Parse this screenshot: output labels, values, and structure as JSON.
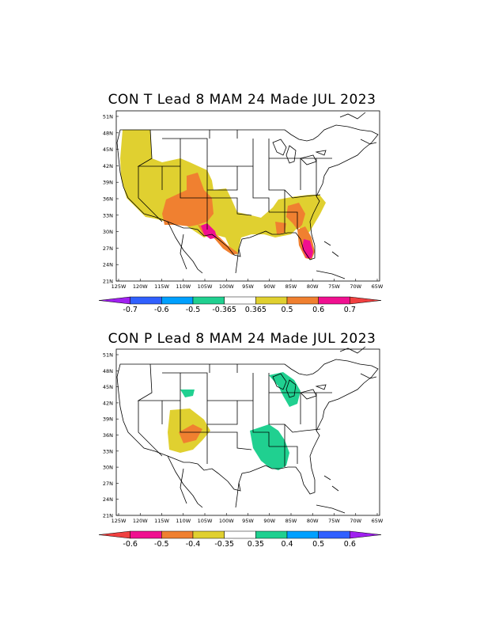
{
  "maps": [
    {
      "title": "CON T Lead 8 MAM 24 Made JUL 2023",
      "lat_labels": [
        "51N",
        "48N",
        "45N",
        "42N",
        "39N",
        "36N",
        "33N",
        "30N",
        "27N",
        "24N",
        "21N"
      ],
      "lon_labels": [
        "125W",
        "120W",
        "115W",
        "110W",
        "105W",
        "100W",
        "95W",
        "90W",
        "85W",
        "80W",
        "75W",
        "70W",
        "65W"
      ],
      "colorbar": {
        "colors": [
          "#a020f0",
          "#3060ff",
          "#00a0ff",
          "#20d090",
          "#ffffff",
          "#e0d030",
          "#f08030",
          "#f01090",
          "#f04040"
        ],
        "labels": [
          "-0.7",
          "-0.6",
          "-0.5",
          "-0.365",
          "0.365",
          "0.5",
          "0.6",
          "0.7"
        ]
      }
    },
    {
      "title": "CON P  Lead 8 MAM 24 Made JUL 2023",
      "lat_labels": [
        "51N",
        "48N",
        "45N",
        "42N",
        "39N",
        "36N",
        "33N",
        "30N",
        "27N",
        "24N",
        "21N"
      ],
      "lon_labels": [
        "125W",
        "120W",
        "115W",
        "110W",
        "105W",
        "100W",
        "95W",
        "90W",
        "85W",
        "80W",
        "75W",
        "70W",
        "65W"
      ],
      "colorbar": {
        "colors": [
          "#f04040",
          "#f01090",
          "#f08030",
          "#e0d030",
          "#ffffff",
          "#20d090",
          "#00a0ff",
          "#3060ff",
          "#a020f0"
        ],
        "labels": [
          "-0.6",
          "-0.5",
          "-0.4",
          "-0.35",
          "0.35",
          "0.4",
          "0.5",
          "0.6"
        ]
      }
    }
  ]
}
